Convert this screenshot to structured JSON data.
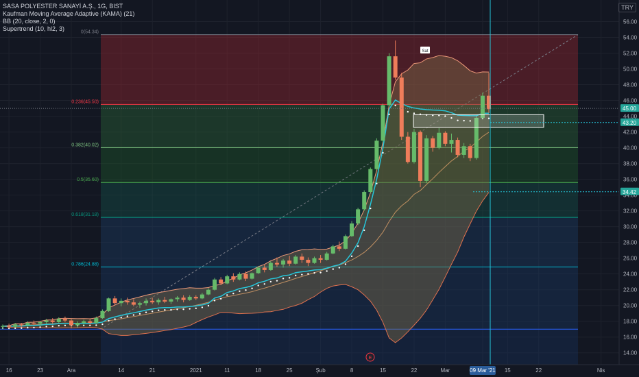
{
  "symbol_line": "SASA POLYESTER SANAYİ A.Ş., 1G, BIST",
  "indicators": [
    "Kaufman Moving Average Adaptive (KAMA) (21)",
    "BB (20, close, 2, 0)",
    "Supertrend (10, hl2, 3)"
  ],
  "currency_badge": "TRY",
  "chart_data": {
    "type": "candlestick",
    "title": "SASA POLYESTER SANAYİ A.Ş., 1G, BIST",
    "ylim": [
      12.5,
      57
    ],
    "y_ticks": [
      14,
      16,
      18,
      20,
      22,
      24,
      26,
      28,
      30,
      32,
      34,
      36,
      38,
      40,
      42,
      44,
      46,
      48,
      50,
      52,
      54,
      56
    ],
    "y_tick_labels": [
      "14.00",
      "16.00",
      "18.00",
      "20.00",
      "22.00",
      "24.00",
      "26.00",
      "28.00",
      "30.00",
      "32.00",
      "34.00",
      "36.00",
      "38.00",
      "40.00",
      "42.00",
      "44.00",
      "46.00",
      "48.00",
      "50.00",
      "52.00",
      "54.00",
      "56.00"
    ],
    "x_ticks": [
      {
        "label": "16",
        "i": 1
      },
      {
        "label": "23",
        "i": 6
      },
      {
        "label": "Ara",
        "i": 11
      },
      {
        "label": "14",
        "i": 19
      },
      {
        "label": "21",
        "i": 24
      },
      {
        "label": "2021",
        "i": 31
      },
      {
        "label": "11",
        "i": 36
      },
      {
        "label": "18",
        "i": 41
      },
      {
        "label": "25",
        "i": 46
      },
      {
        "label": "Şub",
        "i": 51
      },
      {
        "label": "8",
        "i": 56
      },
      {
        "label": "15",
        "i": 61
      },
      {
        "label": "22",
        "i": 66
      },
      {
        "label": "Mar",
        "i": 71
      },
      {
        "label": "09 Mar '21",
        "i": 77
      },
      {
        "label": "15",
        "i": 81
      },
      {
        "label": "22",
        "i": 86
      },
      {
        "label": "Nis",
        "i": 96
      }
    ],
    "candles": [
      [
        17.3,
        17.6,
        17.0,
        17.4
      ],
      [
        17.4,
        17.7,
        17.1,
        17.3
      ],
      [
        17.3,
        17.8,
        17.2,
        17.6
      ],
      [
        17.6,
        17.8,
        17.3,
        17.5
      ],
      [
        17.5,
        18.0,
        17.3,
        17.8
      ],
      [
        17.8,
        18.1,
        17.5,
        17.7
      ],
      [
        17.7,
        18.0,
        17.4,
        17.9
      ],
      [
        17.9,
        18.3,
        17.7,
        18.1
      ],
      [
        18.1,
        18.4,
        17.7,
        17.9
      ],
      [
        17.9,
        18.5,
        17.8,
        18.3
      ],
      [
        18.3,
        18.6,
        17.9,
        18.1
      ],
      [
        18.1,
        18.3,
        17.1,
        17.5
      ],
      [
        17.5,
        18.0,
        17.2,
        17.8
      ],
      [
        17.8,
        18.2,
        17.5,
        18.0
      ],
      [
        18.0,
        18.3,
        17.6,
        17.8
      ],
      [
        17.8,
        18.6,
        17.7,
        18.4
      ],
      [
        18.4,
        19.5,
        18.3,
        19.3
      ],
      [
        19.3,
        21.0,
        19.2,
        20.9
      ],
      [
        20.9,
        21.2,
        20.0,
        20.3
      ],
      [
        20.3,
        20.9,
        19.9,
        20.6
      ],
      [
        20.6,
        21.0,
        20.1,
        20.4
      ],
      [
        20.4,
        20.8,
        19.9,
        20.1
      ],
      [
        20.1,
        20.5,
        19.7,
        20.3
      ],
      [
        20.3,
        20.9,
        20.0,
        20.6
      ],
      [
        20.6,
        21.0,
        20.2,
        20.4
      ],
      [
        20.4,
        20.9,
        20.1,
        20.7
      ],
      [
        20.7,
        21.1,
        20.3,
        20.5
      ],
      [
        20.5,
        20.9,
        20.2,
        20.8
      ],
      [
        20.8,
        21.2,
        20.5,
        21.0
      ],
      [
        21.0,
        21.3,
        20.4,
        20.7
      ],
      [
        20.7,
        21.3,
        20.6,
        21.1
      ],
      [
        21.1,
        21.3,
        20.7,
        20.9
      ],
      [
        20.9,
        21.6,
        20.8,
        21.4
      ],
      [
        21.4,
        22.2,
        21.3,
        22.0
      ],
      [
        22.0,
        23.5,
        21.9,
        23.3
      ],
      [
        23.3,
        23.6,
        22.6,
        22.8
      ],
      [
        22.8,
        23.9,
        22.7,
        23.7
      ],
      [
        23.7,
        24.1,
        23.0,
        23.3
      ],
      [
        23.3,
        24.2,
        23.2,
        24.0
      ],
      [
        24.0,
        24.3,
        23.1,
        23.4
      ],
      [
        23.4,
        24.2,
        23.3,
        24.1
      ],
      [
        24.1,
        25.0,
        24.0,
        24.8
      ],
      [
        24.8,
        25.2,
        24.2,
        24.5
      ],
      [
        24.5,
        25.6,
        24.4,
        25.4
      ],
      [
        25.4,
        26.1,
        24.9,
        25.2
      ],
      [
        25.2,
        25.9,
        24.8,
        25.7
      ],
      [
        25.7,
        26.3,
        25.0,
        25.3
      ],
      [
        25.3,
        26.4,
        25.2,
        26.2
      ],
      [
        26.2,
        26.6,
        25.4,
        25.8
      ],
      [
        25.8,
        26.1,
        25.0,
        25.4
      ],
      [
        25.4,
        26.2,
        25.3,
        26.0
      ],
      [
        26.0,
        26.4,
        25.4,
        25.8
      ],
      [
        25.8,
        26.8,
        25.7,
        26.6
      ],
      [
        26.6,
        27.7,
        26.5,
        27.5
      ],
      [
        27.5,
        28.1,
        26.9,
        27.2
      ],
      [
        27.2,
        29.0,
        27.1,
        28.8
      ],
      [
        28.8,
        30.7,
        28.7,
        30.4
      ],
      [
        30.4,
        32.4,
        30.2,
        32.2
      ],
      [
        32.2,
        34.6,
        32.0,
        34.4
      ],
      [
        34.4,
        37.5,
        34.3,
        37.3
      ],
      [
        37.3,
        41.2,
        37.2,
        40.9
      ],
      [
        40.9,
        45.6,
        40.7,
        45.4
      ],
      [
        45.4,
        52.0,
        45.2,
        51.6
      ],
      [
        51.6,
        53.6,
        48.6,
        48.9
      ],
      [
        48.9,
        49.5,
        41.0,
        41.4
      ],
      [
        41.4,
        42.0,
        38.0,
        38.2
      ],
      [
        38.2,
        42.4,
        38.0,
        42.0
      ],
      [
        42.0,
        42.2,
        35.0,
        35.8
      ],
      [
        35.8,
        41.6,
        35.5,
        41.2
      ],
      [
        41.2,
        41.5,
        39.5,
        40.0
      ],
      [
        40.0,
        42.5,
        39.8,
        41.9
      ],
      [
        41.9,
        42.1,
        40.2,
        40.5
      ],
      [
        40.5,
        41.8,
        39.4,
        41.0
      ],
      [
        41.0,
        41.3,
        38.8,
        39.1
      ],
      [
        39.1,
        40.6,
        38.7,
        40.2
      ],
      [
        40.2,
        40.5,
        38.3,
        38.7
      ],
      [
        38.7,
        44.0,
        38.5,
        43.8
      ],
      [
        43.8,
        47.0,
        43.6,
        46.6
      ],
      [
        46.6,
        49.5,
        44.4,
        44.9
      ]
    ],
    "fib_levels": [
      {
        "label": "0(54.34)",
        "value": 54.34,
        "color": "#787b86"
      },
      {
        "label": "0.236(45.50)",
        "value": 45.5,
        "color": "#f23645"
      },
      {
        "label": "0.382(40.02)",
        "value": 40.02,
        "color": "#81c784"
      },
      {
        "label": "0.5(35.60)",
        "value": 35.6,
        "color": "#4caf50"
      },
      {
        "label": "0.618(31.18)",
        "value": 31.18,
        "color": "#089981"
      },
      {
        "label": "0.786(24.88)",
        "value": 24.88,
        "color": "#00bcd4"
      },
      {
        "label": "",
        "value": 17.0,
        "color": "#2962ff"
      }
    ],
    "fib_bands": [
      {
        "from": 54.34,
        "to": 45.5,
        "color": "#a52730"
      },
      {
        "from": 45.5,
        "to": 40.02,
        "color": "#2e6b37"
      },
      {
        "from": 40.02,
        "to": 35.6,
        "color": "#1f5e2b"
      },
      {
        "from": 35.6,
        "to": 31.18,
        "color": "#16574c"
      },
      {
        "from": 31.18,
        "to": 24.88,
        "color": "#1c3f6a"
      },
      {
        "from": 24.88,
        "to": 17.0,
        "color": "#1a3a66"
      },
      {
        "from": 17.0,
        "to": 12.5,
        "color": "#17335e"
      }
    ],
    "price_labels": [
      {
        "text": "45.00",
        "value": 45.0,
        "bg": "#26a69a"
      },
      {
        "text": "43.20",
        "value": 43.2,
        "bg": "#26a69a"
      },
      {
        "text": "34.42",
        "value": 34.42,
        "bg": "#26a69a"
      }
    ],
    "bubbles": [
      "E",
      "Sat"
    ],
    "colors": {
      "up": "#66bb6a",
      "down": "#ef7d5a",
      "kama": "#26c6da",
      "bb": "#ff8a65",
      "supertrend": "#4caf50",
      "crosshair": "#26c6da"
    }
  }
}
